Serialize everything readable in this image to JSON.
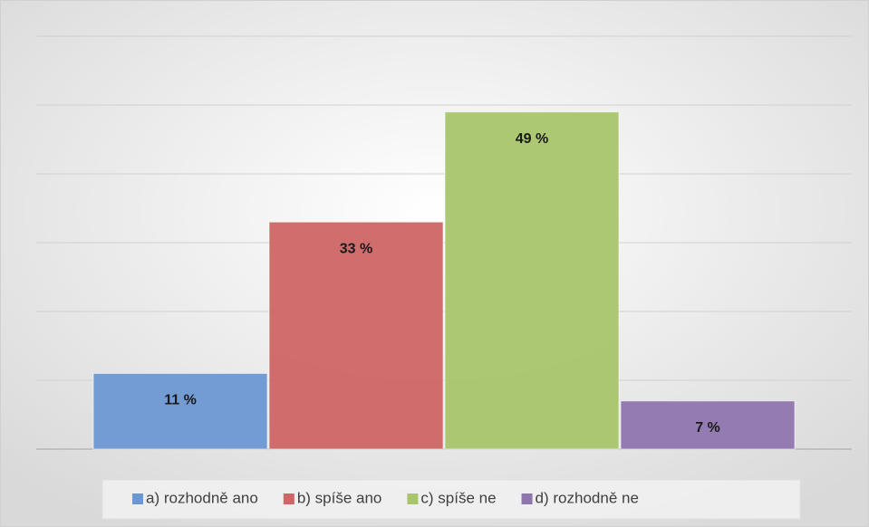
{
  "chart_data": {
    "type": "bar",
    "categories": [
      null
    ],
    "series": [
      {
        "name": "a) rozhodně ano",
        "color": "#6b98d2",
        "values": [
          11
        ],
        "value_labels": [
          "11 %"
        ]
      },
      {
        "name": "b) spíše ano",
        "color": "#cd6665",
        "values": [
          33
        ],
        "value_labels": [
          "33 %"
        ]
      },
      {
        "name": "c) spíše ne",
        "color": "#a9c56b",
        "values": [
          49
        ],
        "value_labels": [
          "49 %"
        ]
      },
      {
        "name": "d) rozhodně ne",
        "color": "#8f75ae",
        "values": [
          7
        ],
        "value_labels": [
          "7 %"
        ]
      }
    ],
    "ylim": [
      0,
      60
    ],
    "yticks": [
      0,
      10,
      20,
      30,
      40,
      50,
      60
    ],
    "grid": true,
    "legend": "bottom"
  }
}
